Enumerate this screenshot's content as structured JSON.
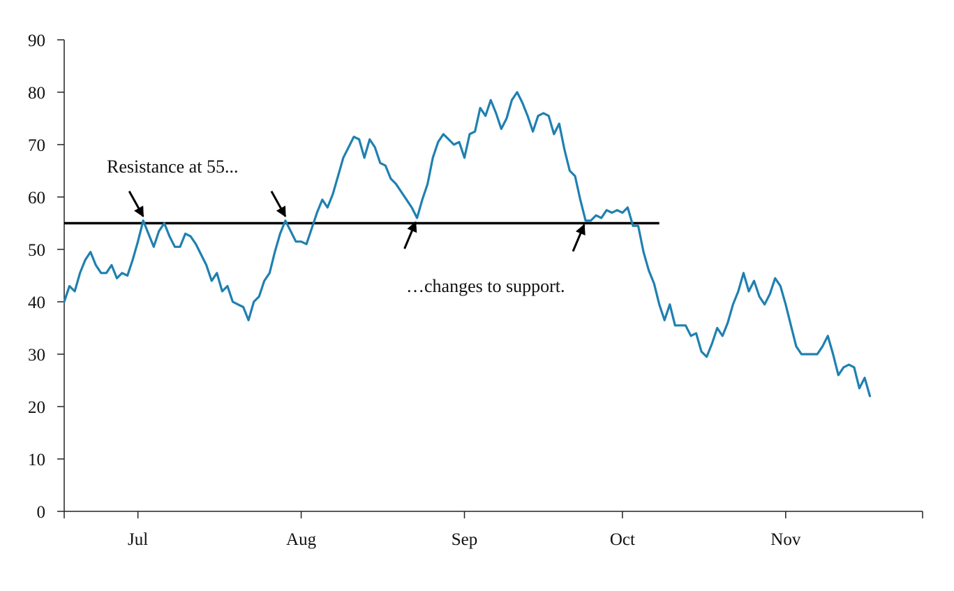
{
  "chart_data": {
    "type": "line",
    "title": "",
    "xlabel": "",
    "ylabel": "",
    "ylim": [
      0,
      90
    ],
    "y_ticks": [
      0,
      10,
      20,
      30,
      40,
      50,
      60,
      70,
      80,
      90
    ],
    "x_tick_labels": [
      "Jul",
      "Aug",
      "Sep",
      "Oct",
      "Nov"
    ],
    "x_ticks": [
      {
        "label": "Jul",
        "date": "2023-07-01"
      },
      {
        "label": "Aug",
        "date": "2023-08-01"
      },
      {
        "label": "Sep",
        "date": "2023-09-01"
      },
      {
        "label": "Oct",
        "date": "2023-10-01"
      },
      {
        "label": "Nov",
        "date": "2023-11-01"
      }
    ],
    "xlim": [
      "2023-06-17",
      "2023-11-27"
    ],
    "grid": false,
    "series": [
      {
        "color": "#1f80b0",
        "points": [
          [
            "2023-06-17",
            40
          ],
          [
            "2023-06-18",
            43
          ],
          [
            "2023-06-19",
            42
          ],
          [
            "2023-06-20",
            45.5
          ],
          [
            "2023-06-21",
            48
          ],
          [
            "2023-06-22",
            49.5
          ],
          [
            "2023-06-23",
            47
          ],
          [
            "2023-06-24",
            45.5
          ],
          [
            "2023-06-25",
            45.5
          ],
          [
            "2023-06-26",
            47
          ],
          [
            "2023-06-27",
            44.5
          ],
          [
            "2023-06-28",
            45.5
          ],
          [
            "2023-06-29",
            45
          ],
          [
            "2023-06-30",
            48
          ],
          [
            "2023-07-01",
            51.5
          ],
          [
            "2023-07-02",
            55.5
          ],
          [
            "2023-07-03",
            53
          ],
          [
            "2023-07-04",
            50.5
          ],
          [
            "2023-07-05",
            53.5
          ],
          [
            "2023-07-06",
            55
          ],
          [
            "2023-07-07",
            52.5
          ],
          [
            "2023-07-08",
            50.5
          ],
          [
            "2023-07-09",
            50.5
          ],
          [
            "2023-07-10",
            53
          ],
          [
            "2023-07-11",
            52.5
          ],
          [
            "2023-07-12",
            51
          ],
          [
            "2023-07-13",
            49
          ],
          [
            "2023-07-14",
            47
          ],
          [
            "2023-07-15",
            44
          ],
          [
            "2023-07-16",
            45.5
          ],
          [
            "2023-07-17",
            42
          ],
          [
            "2023-07-18",
            43
          ],
          [
            "2023-07-19",
            40
          ],
          [
            "2023-07-20",
            39.5
          ],
          [
            "2023-07-21",
            39
          ],
          [
            "2023-07-22",
            36.5
          ],
          [
            "2023-07-23",
            40
          ],
          [
            "2023-07-24",
            41
          ],
          [
            "2023-07-25",
            44
          ],
          [
            "2023-07-26",
            45.5
          ],
          [
            "2023-07-27",
            49.5
          ],
          [
            "2023-07-28",
            53
          ],
          [
            "2023-07-29",
            55.5
          ],
          [
            "2023-07-30",
            53.5
          ],
          [
            "2023-07-31",
            51.5
          ],
          [
            "2023-08-01",
            51.5
          ],
          [
            "2023-08-02",
            51
          ],
          [
            "2023-08-03",
            54
          ],
          [
            "2023-08-04",
            57
          ],
          [
            "2023-08-05",
            59.5
          ],
          [
            "2023-08-06",
            58
          ],
          [
            "2023-08-07",
            60.5
          ],
          [
            "2023-08-08",
            64
          ],
          [
            "2023-08-09",
            67.5
          ],
          [
            "2023-08-10",
            69.5
          ],
          [
            "2023-08-11",
            71.5
          ],
          [
            "2023-08-12",
            71
          ],
          [
            "2023-08-13",
            67.5
          ],
          [
            "2023-08-14",
            71
          ],
          [
            "2023-08-15",
            69.5
          ],
          [
            "2023-08-16",
            66.5
          ],
          [
            "2023-08-17",
            66
          ],
          [
            "2023-08-18",
            63.5
          ],
          [
            "2023-08-19",
            62.5
          ],
          [
            "2023-08-20",
            61
          ],
          [
            "2023-08-21",
            59.5
          ],
          [
            "2023-08-22",
            58
          ],
          [
            "2023-08-23",
            56
          ],
          [
            "2023-08-24",
            59.5
          ],
          [
            "2023-08-25",
            62.5
          ],
          [
            "2023-08-26",
            67.5
          ],
          [
            "2023-08-27",
            70.5
          ],
          [
            "2023-08-28",
            72
          ],
          [
            "2023-08-29",
            71
          ],
          [
            "2023-08-30",
            70
          ],
          [
            "2023-08-31",
            70.5
          ],
          [
            "2023-09-01",
            67.5
          ],
          [
            "2023-09-02",
            72
          ],
          [
            "2023-09-03",
            72.5
          ],
          [
            "2023-09-04",
            77
          ],
          [
            "2023-09-05",
            75.5
          ],
          [
            "2023-09-06",
            78.5
          ],
          [
            "2023-09-07",
            76
          ],
          [
            "2023-09-08",
            73
          ],
          [
            "2023-09-09",
            75
          ],
          [
            "2023-09-10",
            78.5
          ],
          [
            "2023-09-11",
            80
          ],
          [
            "2023-09-12",
            78
          ],
          [
            "2023-09-13",
            75.5
          ],
          [
            "2023-09-14",
            72.5
          ],
          [
            "2023-09-15",
            75.5
          ],
          [
            "2023-09-16",
            76
          ],
          [
            "2023-09-17",
            75.5
          ],
          [
            "2023-09-18",
            72
          ],
          [
            "2023-09-19",
            74
          ],
          [
            "2023-09-20",
            69
          ],
          [
            "2023-09-21",
            65
          ],
          [
            "2023-09-22",
            64
          ],
          [
            "2023-09-23",
            59.5
          ],
          [
            "2023-09-24",
            55.5
          ],
          [
            "2023-09-25",
            55.5
          ],
          [
            "2023-09-26",
            56.5
          ],
          [
            "2023-09-27",
            56
          ],
          [
            "2023-09-28",
            57.5
          ],
          [
            "2023-09-29",
            57
          ],
          [
            "2023-09-30",
            57.5
          ],
          [
            "2023-10-01",
            57
          ],
          [
            "2023-10-02",
            58
          ],
          [
            "2023-10-03",
            54.5
          ],
          [
            "2023-10-04",
            54.5
          ],
          [
            "2023-10-05",
            49.5
          ],
          [
            "2023-10-06",
            46
          ],
          [
            "2023-10-07",
            43.5
          ],
          [
            "2023-10-08",
            39.5
          ],
          [
            "2023-10-09",
            36.5
          ],
          [
            "2023-10-10",
            39.5
          ],
          [
            "2023-10-11",
            35.5
          ],
          [
            "2023-10-12",
            35.5
          ],
          [
            "2023-10-13",
            35.5
          ],
          [
            "2023-10-14",
            33.5
          ],
          [
            "2023-10-15",
            34
          ],
          [
            "2023-10-16",
            30.5
          ],
          [
            "2023-10-17",
            29.5
          ],
          [
            "2023-10-18",
            32
          ],
          [
            "2023-10-19",
            35
          ],
          [
            "2023-10-20",
            33.5
          ],
          [
            "2023-10-21",
            36
          ],
          [
            "2023-10-22",
            39.5
          ],
          [
            "2023-10-23",
            42
          ],
          [
            "2023-10-24",
            45.5
          ],
          [
            "2023-10-25",
            42
          ],
          [
            "2023-10-26",
            44
          ],
          [
            "2023-10-27",
            41
          ],
          [
            "2023-10-28",
            39.5
          ],
          [
            "2023-10-29",
            41.5
          ],
          [
            "2023-10-30",
            44.5
          ],
          [
            "2023-10-31",
            43
          ],
          [
            "2023-11-01",
            39.5
          ],
          [
            "2023-11-02",
            35.5
          ],
          [
            "2023-11-03",
            31.5
          ],
          [
            "2023-11-04",
            30
          ],
          [
            "2023-11-05",
            30
          ],
          [
            "2023-11-06",
            30
          ],
          [
            "2023-11-07",
            30
          ],
          [
            "2023-11-08",
            31.5
          ],
          [
            "2023-11-09",
            33.5
          ],
          [
            "2023-11-10",
            30
          ],
          [
            "2023-11-11",
            26
          ],
          [
            "2023-11-12",
            27.5
          ],
          [
            "2023-11-13",
            28
          ],
          [
            "2023-11-14",
            27.5
          ],
          [
            "2023-11-15",
            23.5
          ],
          [
            "2023-11-16",
            25.5
          ],
          [
            "2023-11-17",
            22
          ]
        ]
      }
    ],
    "reference_lines": [
      {
        "type": "horizontal",
        "y": 55,
        "x_from": "2023-06-17",
        "x_to": "2023-10-08",
        "color": "#000000"
      }
    ],
    "annotations": [
      {
        "text": "Resistance at 55...",
        "arrows_to": [
          [
            "2023-07-02",
            55.5
          ],
          [
            "2023-07-29",
            55.5
          ]
        ]
      },
      {
        "text": "…changes to support.",
        "arrows_to": [
          [
            "2023-08-23",
            56
          ],
          [
            "2023-09-24",
            55.5
          ]
        ]
      }
    ]
  }
}
